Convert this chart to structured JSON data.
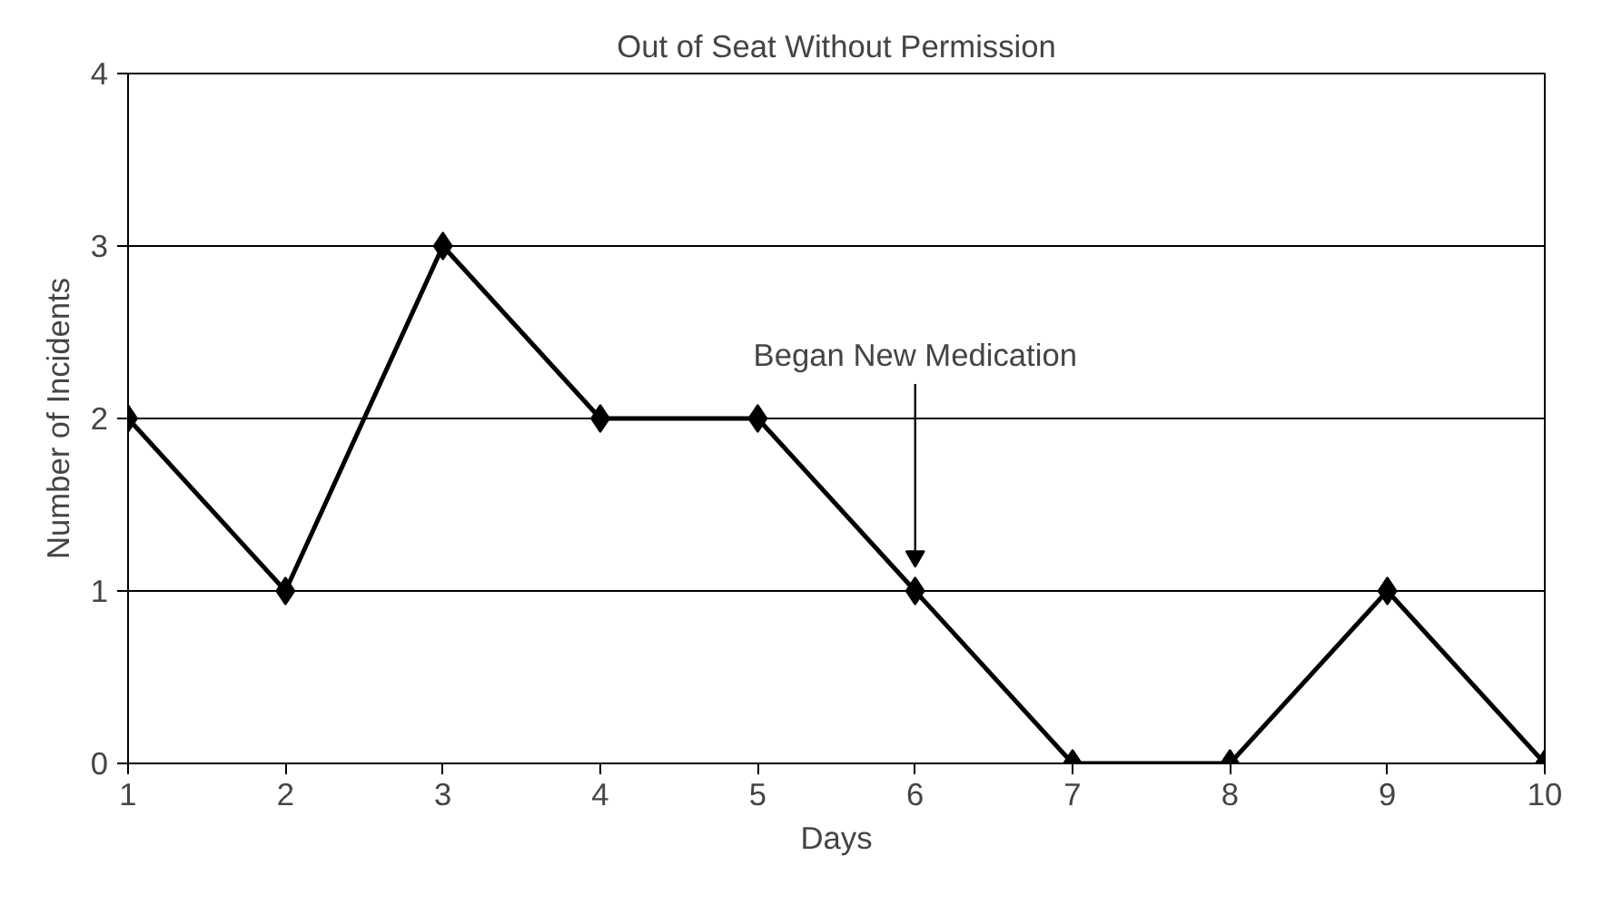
{
  "chart_data": {
    "type": "line",
    "title": "Out of Seat Without Permission",
    "xlabel": "Days",
    "ylabel": "Number of Incidents",
    "x": [
      1,
      2,
      3,
      4,
      5,
      6,
      7,
      8,
      9,
      10
    ],
    "series": [
      {
        "color": "#000000",
        "values": [
          2,
          1,
          3,
          2,
          2,
          1,
          0,
          0,
          1,
          0
        ]
      }
    ],
    "xlim": [
      1,
      10
    ],
    "ylim": [
      0,
      4
    ],
    "xticks": [
      1,
      2,
      3,
      4,
      5,
      6,
      7,
      8,
      9,
      10
    ],
    "yticks": [
      0,
      1,
      2,
      3,
      4
    ],
    "grid": "y",
    "marker": "diamond",
    "line_style": "solid",
    "annotations": [
      "Began New Medication"
    ]
  }
}
